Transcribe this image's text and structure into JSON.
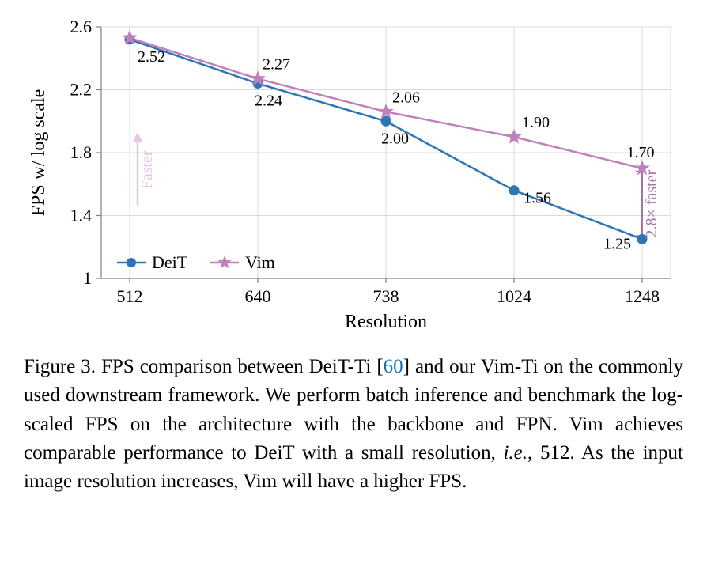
{
  "chart": {
    "type": "line",
    "background_color": "#ffffff",
    "grid_color": "#d9d9d9",
    "axis_color": "#808080",
    "tick_color": "#808080",
    "plot_border_color": "#808080",
    "xlabel": "Resolution",
    "ylabel": "FPS w/ log scale",
    "label_fontsize": 24,
    "tick_fontsize": 22,
    "data_label_fontsize": 20,
    "xticks": [
      "512",
      "640",
      "738",
      "1024",
      "1248"
    ],
    "yticks": [
      "1",
      "1.4",
      "1.8",
      "2.2",
      "2.6"
    ],
    "ylim": [
      1.0,
      2.6
    ],
    "xlim_indices": [
      0,
      4
    ],
    "series": [
      {
        "name": "DeiT",
        "color": "#2e75b6",
        "marker": "circle",
        "marker_size": 6,
        "line_width": 2.5,
        "values": [
          2.52,
          2.24,
          2.0,
          1.56,
          1.25
        ],
        "value_labels": [
          "2.52",
          "2.24",
          "2.00",
          "1.56",
          "1.25"
        ],
        "label_positions": [
          "below",
          "below",
          "below",
          "below",
          "below-left"
        ]
      },
      {
        "name": "Vim",
        "color": "#c080bd",
        "marker": "star",
        "marker_size": 9,
        "line_width": 2.5,
        "values": [
          2.53,
          2.27,
          2.06,
          1.9,
          1.7
        ],
        "value_labels": [
          "",
          "2.27",
          "2.06",
          "1.90",
          "1.70"
        ],
        "label_positions": [
          "",
          "above",
          "above",
          "above",
          "above"
        ]
      }
    ],
    "legend": {
      "items": [
        "DeiT",
        "Vim"
      ],
      "position": "bottom-left-inside",
      "fontsize": 22
    },
    "annotations": {
      "faster_arrow": {
        "text": "Faster",
        "color": "#e6c4e4",
        "fontsize": 20
      },
      "speedup": {
        "text": "2.8× faster",
        "color": "#a96fa8",
        "fontsize": 20
      }
    }
  },
  "caption": {
    "fig_label": "Figure 3.",
    "text_before_ref": "  FPS comparison between DeiT-Ti [",
    "ref_number": "60",
    "text_after_ref": "] and our Vim-Ti on the commonly used downstream framework.  We perform batch inference and benchmark the log-scaled FPS on the architecture with the backbone and FPN. Vim achieves comparable performance to DeiT with a small resolution, ",
    "italic_text": "i.e.",
    "text_after_italic": ", 512.  As the input image resolution increases, Vim will have a higher FPS.",
    "fontsize": 25
  }
}
